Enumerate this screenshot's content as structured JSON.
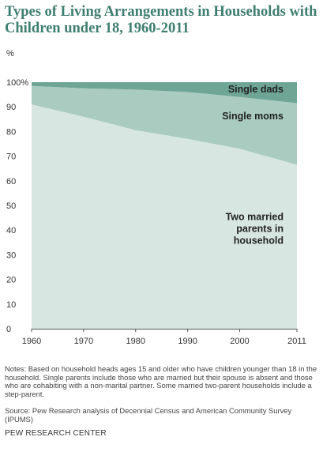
{
  "header": {
    "title": "Types of Living Arrangements in Households with Children under 18, 1960-2011",
    "unit": "%"
  },
  "chart_data": {
    "type": "area",
    "stacked": true,
    "x": [
      1960,
      1970,
      1980,
      1990,
      2000,
      2011
    ],
    "x_tick_labels": [
      "1960",
      "1970",
      "1980",
      "1990",
      "2000",
      "2011"
    ],
    "y_tick_labels": [
      "0",
      "10",
      "20",
      "30",
      "40",
      "50",
      "60",
      "70",
      "80",
      "90",
      "100%"
    ],
    "ylim": [
      0,
      100
    ],
    "xlim": [
      1960,
      2011
    ],
    "series": [
      {
        "name": "Two married parents in household",
        "label_lines": [
          "Two married",
          "parents in",
          "household"
        ],
        "values": [
          91,
          86,
          80.5,
          77,
          73,
          66.5
        ],
        "color": "#d7e6e1"
      },
      {
        "name": "Single moms",
        "label_lines": [
          "Single moms"
        ],
        "values": [
          7.5,
          11.5,
          16.5,
          19,
          21,
          25
        ],
        "color": "#a9cbc0"
      },
      {
        "name": "Single dads",
        "label_lines": [
          "Single dads"
        ],
        "values": [
          1.5,
          2.5,
          3,
          4,
          6,
          8.5
        ],
        "color": "#6fa595"
      }
    ],
    "grid": false,
    "legend": "inline labels"
  },
  "footer": {
    "notes": "Notes: Based on household heads ages 15 and older who have children younger than 18 in the household. Single parents include those who are married but their spouse is absent and those who are cohabiting with a non-marital partner. Some married two-parent households include a step-parent.",
    "source": "Source: Pew Research analysis of Decennial Census and American Community Survey (IPUMS)",
    "credit": "PEW RESEARCH CENTER"
  }
}
